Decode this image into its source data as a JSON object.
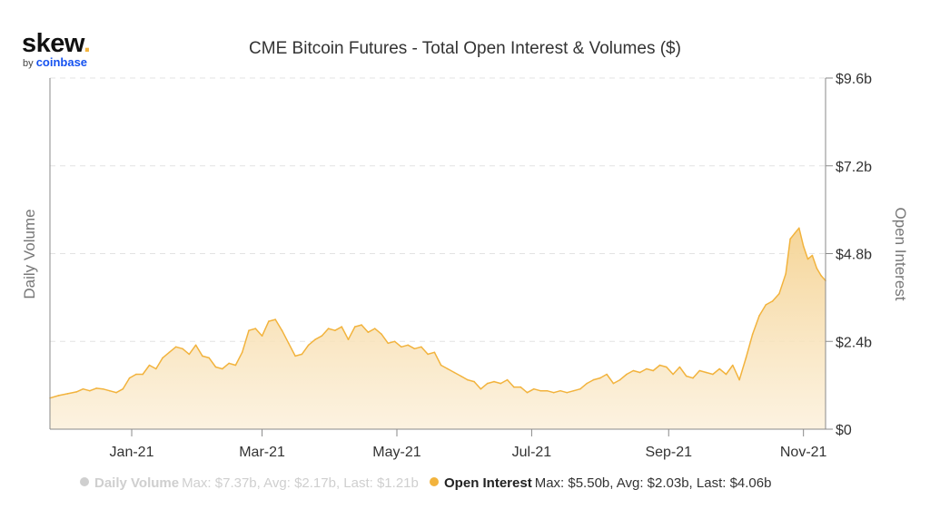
{
  "logo": {
    "main": "skew",
    "dot": ".",
    "by": "by",
    "brand": "coinbase"
  },
  "colors": {
    "series": "#f2b33d",
    "fill": "#f5d69b",
    "inactive": "#cfcfcf",
    "axis": "#8a8a8a",
    "grid": "#e3e3e3"
  },
  "chart_data": {
    "type": "area",
    "title": "CME Bitcoin Futures - Total Open Interest & Volumes ($)",
    "ylabel_left": "Daily Volume",
    "ylabel_right": "Open Interest",
    "x_range": [
      "2020-11-25",
      "2021-11-11"
    ],
    "x_ticks": [
      {
        "date": "2021-01-01",
        "label": "Jan-21"
      },
      {
        "date": "2021-03-01",
        "label": "Mar-21"
      },
      {
        "date": "2021-05-01",
        "label": "May-21"
      },
      {
        "date": "2021-07-01",
        "label": "Jul-21"
      },
      {
        "date": "2021-09-01",
        "label": "Sep-21"
      },
      {
        "date": "2021-11-01",
        "label": "Nov-21"
      }
    ],
    "y_ticks": [
      {
        "value": 0,
        "label": "$0"
      },
      {
        "value": 2.4,
        "label": "$2.4b"
      },
      {
        "value": 4.8,
        "label": "$4.8b"
      },
      {
        "value": 7.2,
        "label": "$7.2b"
      },
      {
        "value": 9.6,
        "label": "$9.6b"
      }
    ],
    "ylim": [
      0,
      9.6
    ],
    "grid": true,
    "series": [
      {
        "name": "Open Interest",
        "unit": "billion USD",
        "visible": true,
        "points": [
          [
            "2020-11-25",
            0.85
          ],
          [
            "2020-11-29",
            0.92
          ],
          [
            "2020-12-03",
            0.97
          ],
          [
            "2020-12-07",
            1.02
          ],
          [
            "2020-12-10",
            1.1
          ],
          [
            "2020-12-13",
            1.05
          ],
          [
            "2020-12-16",
            1.12
          ],
          [
            "2020-12-19",
            1.1
          ],
          [
            "2020-12-22",
            1.05
          ],
          [
            "2020-12-25",
            1.0
          ],
          [
            "2020-12-28",
            1.1
          ],
          [
            "2020-12-31",
            1.4
          ],
          [
            "2021-01-03",
            1.5
          ],
          [
            "2021-01-06",
            1.5
          ],
          [
            "2021-01-09",
            1.75
          ],
          [
            "2021-01-12",
            1.65
          ],
          [
            "2021-01-15",
            1.95
          ],
          [
            "2021-01-18",
            2.1
          ],
          [
            "2021-01-21",
            2.25
          ],
          [
            "2021-01-24",
            2.2
          ],
          [
            "2021-01-27",
            2.05
          ],
          [
            "2021-01-30",
            2.3
          ],
          [
            "2021-02-02",
            2.0
          ],
          [
            "2021-02-05",
            1.95
          ],
          [
            "2021-02-08",
            1.7
          ],
          [
            "2021-02-11",
            1.65
          ],
          [
            "2021-02-14",
            1.8
          ],
          [
            "2021-02-17",
            1.75
          ],
          [
            "2021-02-20",
            2.1
          ],
          [
            "2021-02-23",
            2.7
          ],
          [
            "2021-02-26",
            2.75
          ],
          [
            "2021-03-01",
            2.55
          ],
          [
            "2021-03-04",
            2.95
          ],
          [
            "2021-03-07",
            3.0
          ],
          [
            "2021-03-10",
            2.7
          ],
          [
            "2021-03-13",
            2.35
          ],
          [
            "2021-03-16",
            2.0
          ],
          [
            "2021-03-19",
            2.05
          ],
          [
            "2021-03-22",
            2.3
          ],
          [
            "2021-03-25",
            2.45
          ],
          [
            "2021-03-28",
            2.55
          ],
          [
            "2021-03-31",
            2.75
          ],
          [
            "2021-04-03",
            2.7
          ],
          [
            "2021-04-06",
            2.8
          ],
          [
            "2021-04-09",
            2.45
          ],
          [
            "2021-04-12",
            2.8
          ],
          [
            "2021-04-15",
            2.85
          ],
          [
            "2021-04-18",
            2.65
          ],
          [
            "2021-04-21",
            2.75
          ],
          [
            "2021-04-24",
            2.6
          ],
          [
            "2021-04-27",
            2.35
          ],
          [
            "2021-04-30",
            2.4
          ],
          [
            "2021-05-03",
            2.25
          ],
          [
            "2021-05-06",
            2.3
          ],
          [
            "2021-05-09",
            2.2
          ],
          [
            "2021-05-12",
            2.25
          ],
          [
            "2021-05-15",
            2.05
          ],
          [
            "2021-05-18",
            2.1
          ],
          [
            "2021-05-21",
            1.75
          ],
          [
            "2021-05-24",
            1.65
          ],
          [
            "2021-05-27",
            1.55
          ],
          [
            "2021-05-30",
            1.45
          ],
          [
            "2021-06-02",
            1.35
          ],
          [
            "2021-06-05",
            1.3
          ],
          [
            "2021-06-08",
            1.1
          ],
          [
            "2021-06-11",
            1.25
          ],
          [
            "2021-06-14",
            1.3
          ],
          [
            "2021-06-17",
            1.25
          ],
          [
            "2021-06-20",
            1.35
          ],
          [
            "2021-06-23",
            1.15
          ],
          [
            "2021-06-26",
            1.15
          ],
          [
            "2021-06-29",
            1.0
          ],
          [
            "2021-07-02",
            1.1
          ],
          [
            "2021-07-05",
            1.05
          ],
          [
            "2021-07-08",
            1.05
          ],
          [
            "2021-07-11",
            1.0
          ],
          [
            "2021-07-14",
            1.05
          ],
          [
            "2021-07-17",
            1.0
          ],
          [
            "2021-07-20",
            1.05
          ],
          [
            "2021-07-23",
            1.1
          ],
          [
            "2021-07-26",
            1.25
          ],
          [
            "2021-07-29",
            1.35
          ],
          [
            "2021-08-01",
            1.4
          ],
          [
            "2021-08-04",
            1.5
          ],
          [
            "2021-08-07",
            1.25
          ],
          [
            "2021-08-10",
            1.35
          ],
          [
            "2021-08-13",
            1.5
          ],
          [
            "2021-08-16",
            1.6
          ],
          [
            "2021-08-19",
            1.55
          ],
          [
            "2021-08-22",
            1.65
          ],
          [
            "2021-08-25",
            1.6
          ],
          [
            "2021-08-28",
            1.75
          ],
          [
            "2021-08-31",
            1.7
          ],
          [
            "2021-09-03",
            1.5
          ],
          [
            "2021-09-06",
            1.7
          ],
          [
            "2021-09-09",
            1.45
          ],
          [
            "2021-09-12",
            1.4
          ],
          [
            "2021-09-15",
            1.6
          ],
          [
            "2021-09-18",
            1.55
          ],
          [
            "2021-09-21",
            1.5
          ],
          [
            "2021-09-24",
            1.65
          ],
          [
            "2021-09-27",
            1.5
          ],
          [
            "2021-09-30",
            1.75
          ],
          [
            "2021-10-03",
            1.35
          ],
          [
            "2021-10-06",
            1.95
          ],
          [
            "2021-10-09",
            2.6
          ],
          [
            "2021-10-12",
            3.1
          ],
          [
            "2021-10-15",
            3.4
          ],
          [
            "2021-10-18",
            3.5
          ],
          [
            "2021-10-21",
            3.7
          ],
          [
            "2021-10-24",
            4.25
          ],
          [
            "2021-10-26",
            5.2
          ],
          [
            "2021-10-28",
            5.35
          ],
          [
            "2021-10-30",
            5.5
          ],
          [
            "2021-11-01",
            5.0
          ],
          [
            "2021-11-03",
            4.65
          ],
          [
            "2021-11-05",
            4.75
          ],
          [
            "2021-11-07",
            4.4
          ],
          [
            "2021-11-09",
            4.2
          ],
          [
            "2021-11-11",
            4.06
          ]
        ]
      },
      {
        "name": "Daily Volume",
        "visible": false,
        "points": []
      }
    ],
    "legend_position": "bottom",
    "legend": [
      {
        "name": "Daily Volume",
        "stats": "Max: $7.37b, Avg: $2.17b, Last: $1.21b",
        "active": false
      },
      {
        "name": "Open Interest",
        "stats": "Max: $5.50b, Avg: $2.03b, Last: $4.06b",
        "active": true
      }
    ]
  }
}
